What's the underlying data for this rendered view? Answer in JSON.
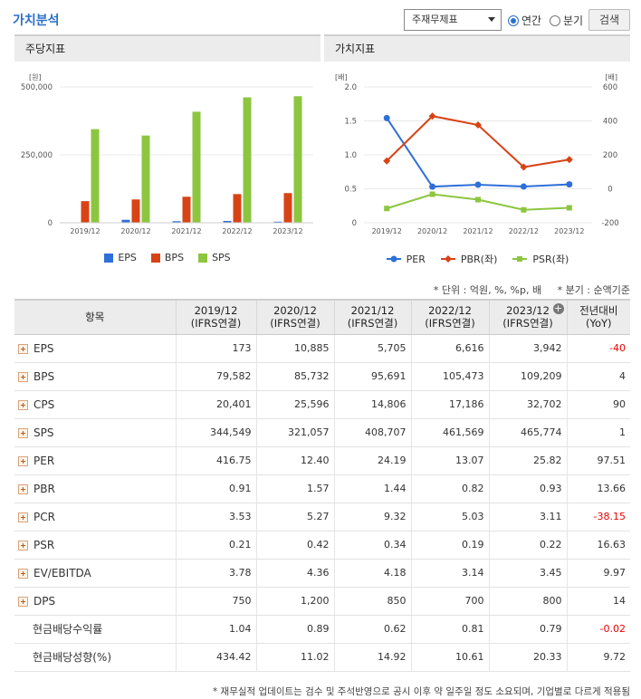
{
  "header": {
    "title": "가치분석",
    "select_value": "주재무제표",
    "radio_annual": "연간",
    "radio_quarter": "분기",
    "search_label": "검색"
  },
  "chart_data": [
    {
      "type": "bar",
      "title": "주당지표",
      "ylabel": "[원]",
      "ylim": [
        0,
        500000
      ],
      "yticks": [
        "0",
        "250,000",
        "500,000"
      ],
      "categories": [
        "2019/12",
        "2020/12",
        "2021/12",
        "2022/12",
        "2023/12"
      ],
      "series": [
        {
          "name": "EPS",
          "color": "#2f6fd8",
          "values": [
            173,
            10885,
            5705,
            6616,
            3942
          ]
        },
        {
          "name": "BPS",
          "color": "#d84315",
          "values": [
            79582,
            85732,
            95691,
            105473,
            109209
          ]
        },
        {
          "name": "SPS",
          "color": "#8cc63f",
          "values": [
            344549,
            321057,
            408707,
            461569,
            465774
          ]
        }
      ],
      "legend": "bottom"
    },
    {
      "type": "line",
      "title": "가치지표",
      "ylabel": "[배]",
      "ylabel_right": "[배]",
      "ylim": [
        0,
        2.0
      ],
      "ylim_right": [
        -200,
        600
      ],
      "yticks": [
        "0",
        "0.5",
        "1.0",
        "1.5",
        "2.0"
      ],
      "yticks_right": [
        "-200",
        "0",
        "200",
        "400",
        "600"
      ],
      "categories": [
        "2019/12",
        "2020/12",
        "2021/12",
        "2022/12",
        "2023/12"
      ],
      "series": [
        {
          "name": "PER",
          "axis": "right",
          "color": "#2f6fd8",
          "marker": "circle",
          "values": [
            416.75,
            12.4,
            24.19,
            13.07,
            25.82
          ]
        },
        {
          "name": "PBR(좌)",
          "axis": "left",
          "color": "#d84315",
          "marker": "diamond",
          "values": [
            0.91,
            1.57,
            1.44,
            0.82,
            0.93
          ]
        },
        {
          "name": "PSR(좌)",
          "axis": "left",
          "color": "#8cc63f",
          "marker": "square",
          "values": [
            0.21,
            0.42,
            0.34,
            0.19,
            0.22
          ]
        }
      ],
      "legend": "bottom"
    }
  ],
  "notes": {
    "unit": "* 단위 : 억원, %, %p, 배",
    "quarter": "* 분기 : 순액기준"
  },
  "table": {
    "headers": [
      {
        "line1": "항목",
        "line2": ""
      },
      {
        "line1": "2019/12",
        "line2": "(IFRS연결)"
      },
      {
        "line1": "2020/12",
        "line2": "(IFRS연결)"
      },
      {
        "line1": "2021/12",
        "line2": "(IFRS연결)"
      },
      {
        "line1": "2022/12",
        "line2": "(IFRS연결)"
      },
      {
        "line1": "2023/12",
        "line2": "(IFRS연결)"
      },
      {
        "line1": "전년대비",
        "line2": "(YoY)"
      }
    ],
    "rows": [
      {
        "name": "EPS",
        "expand": true,
        "values": [
          "173",
          "10,885",
          "5,705",
          "6,616",
          "3,942",
          "-40"
        ],
        "yoy_neg": true
      },
      {
        "name": "BPS",
        "expand": true,
        "values": [
          "79,582",
          "85,732",
          "95,691",
          "105,473",
          "109,209",
          "4"
        ],
        "yoy_neg": false
      },
      {
        "name": "CPS",
        "expand": true,
        "values": [
          "20,401",
          "25,596",
          "14,806",
          "17,186",
          "32,702",
          "90"
        ],
        "yoy_neg": false
      },
      {
        "name": "SPS",
        "expand": true,
        "values": [
          "344,549",
          "321,057",
          "408,707",
          "461,569",
          "465,774",
          "1"
        ],
        "yoy_neg": false
      },
      {
        "name": "PER",
        "expand": true,
        "values": [
          "416.75",
          "12.40",
          "24.19",
          "13.07",
          "25.82",
          "97.51"
        ],
        "yoy_neg": false
      },
      {
        "name": "PBR",
        "expand": true,
        "values": [
          "0.91",
          "1.57",
          "1.44",
          "0.82",
          "0.93",
          "13.66"
        ],
        "yoy_neg": false
      },
      {
        "name": "PCR",
        "expand": true,
        "values": [
          "3.53",
          "5.27",
          "9.32",
          "5.03",
          "3.11",
          "-38.15"
        ],
        "yoy_neg": true
      },
      {
        "name": "PSR",
        "expand": true,
        "values": [
          "0.21",
          "0.42",
          "0.34",
          "0.19",
          "0.22",
          "16.63"
        ],
        "yoy_neg": false
      },
      {
        "name": "EV/EBITDA",
        "expand": true,
        "values": [
          "3.78",
          "4.36",
          "4.18",
          "3.14",
          "3.45",
          "9.97"
        ],
        "yoy_neg": false
      },
      {
        "name": "DPS",
        "expand": true,
        "values": [
          "750",
          "1,200",
          "850",
          "700",
          "800",
          "14"
        ],
        "yoy_neg": false
      },
      {
        "name": "현금배당수익률",
        "expand": false,
        "values": [
          "1.04",
          "0.89",
          "0.62",
          "0.81",
          "0.79",
          "-0.02"
        ],
        "yoy_neg": true
      },
      {
        "name": "현금배당성향(%)",
        "expand": false,
        "values": [
          "434.42",
          "11.02",
          "14.92",
          "10.61",
          "20.33",
          "9.72"
        ],
        "yoy_neg": false
      }
    ]
  },
  "footnote": "* 재무실적 업데이트는 검수 및 주석반영으로 공시 이후 약 일주일 정도 소요되며, 기업별로 다르게 적용됨"
}
